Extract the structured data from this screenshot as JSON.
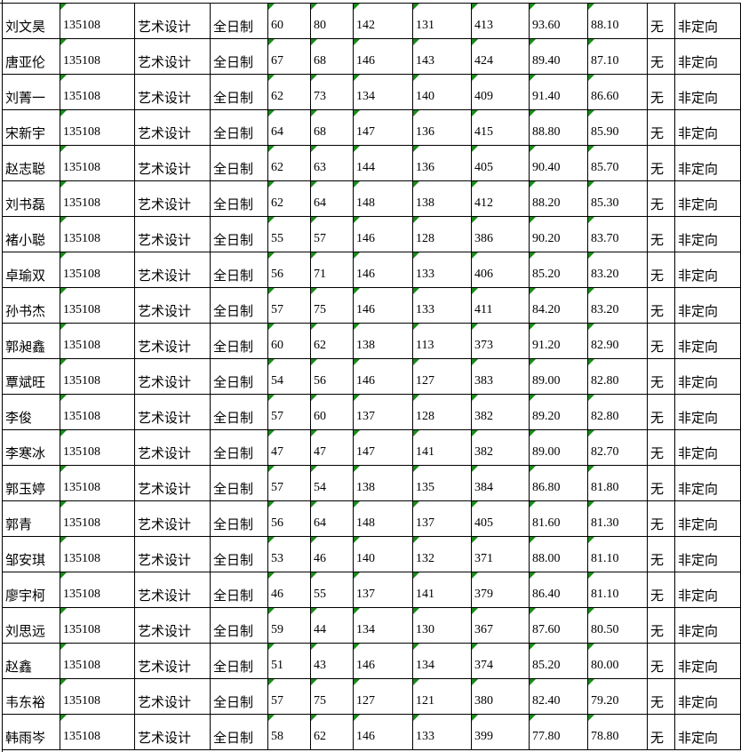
{
  "table": {
    "rows": [
      [
        "刘文昊",
        "135108",
        "艺术设计",
        "全日制",
        "60",
        "80",
        "142",
        "131",
        "413",
        "93.60",
        "88.10",
        "无",
        "非定向"
      ],
      [
        "唐亚伦",
        "135108",
        "艺术设计",
        "全日制",
        "67",
        "68",
        "146",
        "143",
        "424",
        "89.40",
        "87.10",
        "无",
        "非定向"
      ],
      [
        "刘菁一",
        "135108",
        "艺术设计",
        "全日制",
        "62",
        "73",
        "134",
        "140",
        "409",
        "91.40",
        "86.60",
        "无",
        "非定向"
      ],
      [
        "宋新宇",
        "135108",
        "艺术设计",
        "全日制",
        "64",
        "68",
        "147",
        "136",
        "415",
        "88.80",
        "85.90",
        "无",
        "非定向"
      ],
      [
        "赵志聪",
        "135108",
        "艺术设计",
        "全日制",
        "62",
        "63",
        "144",
        "136",
        "405",
        "90.40",
        "85.70",
        "无",
        "非定向"
      ],
      [
        "刘书磊",
        "135108",
        "艺术设计",
        "全日制",
        "62",
        "64",
        "148",
        "138",
        "412",
        "88.20",
        "85.30",
        "无",
        "非定向"
      ],
      [
        "褚小聪",
        "135108",
        "艺术设计",
        "全日制",
        "55",
        "57",
        "146",
        "128",
        "386",
        "90.20",
        "83.70",
        "无",
        "非定向"
      ],
      [
        "卓瑜双",
        "135108",
        "艺术设计",
        "全日制",
        "56",
        "71",
        "146",
        "133",
        "406",
        "85.20",
        "83.20",
        "无",
        "非定向"
      ],
      [
        "孙书杰",
        "135108",
        "艺术设计",
        "全日制",
        "57",
        "75",
        "146",
        "133",
        "411",
        "84.20",
        "83.20",
        "无",
        "非定向"
      ],
      [
        "郭昶鑫",
        "135108",
        "艺术设计",
        "全日制",
        "60",
        "62",
        "138",
        "113",
        "373",
        "91.20",
        "82.90",
        "无",
        "非定向"
      ],
      [
        "覃斌旺",
        "135108",
        "艺术设计",
        "全日制",
        "54",
        "56",
        "146",
        "127",
        "383",
        "89.00",
        "82.80",
        "无",
        "非定向"
      ],
      [
        "李俊",
        "135108",
        "艺术设计",
        "全日制",
        "57",
        "60",
        "137",
        "128",
        "382",
        "89.20",
        "82.80",
        "无",
        "非定向"
      ],
      [
        "李寒冰",
        "135108",
        "艺术设计",
        "全日制",
        "47",
        "47",
        "147",
        "141",
        "382",
        "89.00",
        "82.70",
        "无",
        "非定向"
      ],
      [
        "郭玉婷",
        "135108",
        "艺术设计",
        "全日制",
        "57",
        "54",
        "138",
        "135",
        "384",
        "86.80",
        "81.80",
        "无",
        "非定向"
      ],
      [
        "郭青",
        "135108",
        "艺术设计",
        "全日制",
        "56",
        "64",
        "148",
        "137",
        "405",
        "81.60",
        "81.30",
        "无",
        "非定向"
      ],
      [
        "邹安琪",
        "135108",
        "艺术设计",
        "全日制",
        "53",
        "46",
        "140",
        "132",
        "371",
        "88.00",
        "81.10",
        "无",
        "非定向"
      ],
      [
        "廖宇柯",
        "135108",
        "艺术设计",
        "全日制",
        "46",
        "55",
        "137",
        "141",
        "379",
        "86.40",
        "81.10",
        "无",
        "非定向"
      ],
      [
        "刘思远",
        "135108",
        "艺术设计",
        "全日制",
        "59",
        "44",
        "134",
        "130",
        "367",
        "87.60",
        "80.50",
        "无",
        "非定向"
      ],
      [
        "赵鑫",
        "135108",
        "艺术设计",
        "全日制",
        "51",
        "43",
        "146",
        "134",
        "374",
        "85.20",
        "80.00",
        "无",
        "非定向"
      ],
      [
        "韦东裕",
        "135108",
        "艺术设计",
        "全日制",
        "57",
        "75",
        "127",
        "121",
        "380",
        "82.40",
        "79.20",
        "无",
        "非定向"
      ],
      [
        "韩雨岑",
        "135108",
        "艺术设计",
        "全日制",
        "58",
        "62",
        "146",
        "133",
        "399",
        "77.80",
        "78.80",
        "无",
        "非定向"
      ]
    ]
  }
}
